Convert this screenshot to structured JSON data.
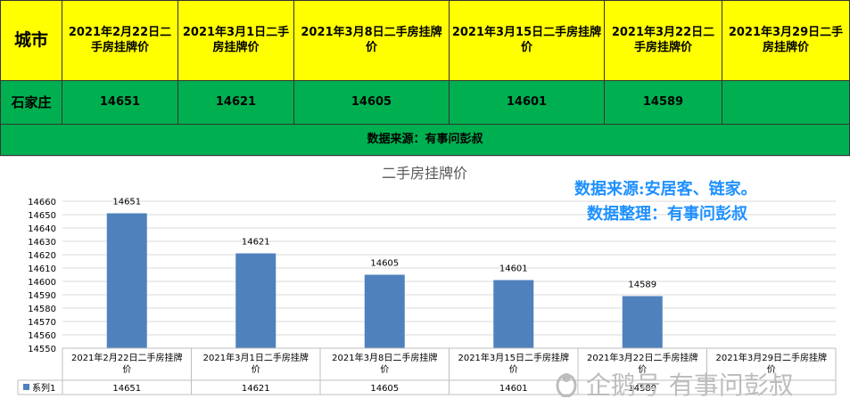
{
  "table": {
    "headers": [
      "城市",
      "2021年2月22日二手房挂牌价",
      "2021年3月1日二手房挂牌价",
      "2021年3月8日二手房挂牌价",
      "2021年3月15日二手房挂牌价",
      "2021年3月22日二手房挂牌价",
      "2021年3月29日二手房挂牌价"
    ],
    "row": [
      "石家庄",
      "14651",
      "14621",
      "14605",
      "14601",
      "14589",
      ""
    ],
    "source": "数据来源：有事问彭叔"
  },
  "chart_data": {
    "type": "bar",
    "title": "二手房挂牌价",
    "categories": [
      "2021年2月22日二手房挂牌价",
      "2021年3月1日二手房挂牌价",
      "2021年3月8日二手房挂牌价",
      "2021年3月15日二手房挂牌价",
      "2021年3月22日二手房挂牌价",
      "2021年3月29日二手房挂牌价"
    ],
    "series": [
      {
        "name": "系列1",
        "values": [
          14651,
          14621,
          14605,
          14601,
          14589,
          null
        ],
        "color": "#4f81bd"
      }
    ],
    "ylim": [
      14550,
      14660
    ],
    "yticks": [
      14550,
      14560,
      14570,
      14580,
      14590,
      14600,
      14610,
      14620,
      14630,
      14640,
      14650,
      14660
    ],
    "grid": true,
    "data_table": true,
    "data_labels": [
      "14651",
      "14621",
      "14605",
      "14601",
      "14589",
      ""
    ]
  },
  "annotations": {
    "line1": "数据来源:安居客、链家。",
    "line2": "数据整理：有事问彭叔"
  },
  "watermark": "企鹅号 有事问彭叔"
}
